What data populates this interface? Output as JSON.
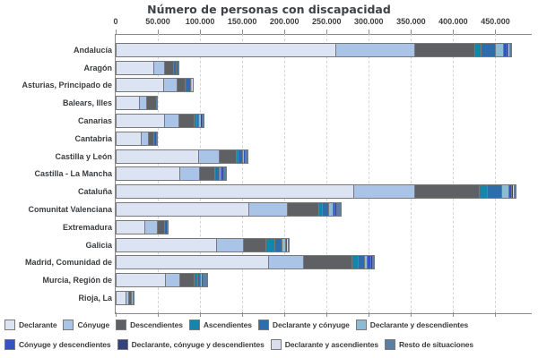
{
  "title": "Número de personas con discapacidad",
  "chart_data": {
    "type": "bar",
    "orientation": "horizontal-stacked",
    "title": "Número de personas con discapacidad",
    "xlabel": "",
    "ylabel": "",
    "xlim": [
      0,
      492000
    ],
    "x_ticks": [
      0,
      50000,
      100000,
      150000,
      200000,
      250000,
      300000,
      350000,
      400000,
      450000
    ],
    "x_tick_labels": [
      "0",
      "50.000",
      "100.000",
      "150.000",
      "200.000",
      "250.000",
      "300.000",
      "350.000",
      "400.000",
      "450.000"
    ],
    "grid": "vertical-dashed",
    "legend_position": "bottom",
    "categories": [
      "Andalucía",
      "Aragón",
      "Asturias, Principado de",
      "Balears, Illes",
      "Canarias",
      "Cantabria",
      "Castilla y León",
      "Castilla - La Mancha",
      "Cataluña",
      "Comunitat Valenciana",
      "Extremadura",
      "Galicia",
      "Madrid, Comunidad de",
      "Murcia, Región de",
      "Rioja, La"
    ],
    "series": [
      {
        "name": "Declarante",
        "color": "#dce3f2",
        "values": [
          259000,
          44000,
          55500,
          26200,
          55900,
          28300,
          97000,
          74300,
          280300,
          156400,
          33300,
          117500,
          179700,
          57300,
          10600
        ]
      },
      {
        "name": "Cónyuge",
        "color": "#a9c4e7",
        "values": [
          93000,
          11000,
          14900,
          7400,
          15900,
          7800,
          23400,
          22000,
          71500,
          44200,
          13400,
          31800,
          40300,
          16300,
          1800
        ]
      },
      {
        "name": "Descendientes",
        "color": "#5e6064",
        "values": [
          70000,
          9500,
          8200,
          10600,
          17000,
          5000,
          18400,
          17700,
          75400,
          36400,
          7100,
          24800,
          56600,
          15600,
          2400
        ]
      },
      {
        "name": "Ascendientes",
        "color": "#1287ab",
        "values": [
          6400,
          800,
          1000,
          200,
          2100,
          400,
          1800,
          1200,
          8800,
          3500,
          500,
          9600,
          6400,
          2900,
          200
        ]
      },
      {
        "name": "Declarante y cónyuge",
        "color": "#2d6dac",
        "values": [
          16000,
          1500,
          4200,
          300,
          2100,
          900,
          3500,
          2900,
          15900,
          6400,
          1000,
          7100,
          5700,
          2900,
          400
        ]
      },
      {
        "name": "Declarante y descendientes",
        "color": "#8cbcd4",
        "values": [
          8500,
          600,
          800,
          150,
          1100,
          400,
          1200,
          900,
          7100,
          3500,
          400,
          3500,
          2900,
          1000,
          200
        ]
      },
      {
        "name": "Cónyuge y descendientes",
        "color": "#3354c6",
        "values": [
          3200,
          400,
          500,
          100,
          700,
          300,
          900,
          1400,
          2100,
          1500,
          300,
          1000,
          2900,
          600,
          100
        ]
      },
      {
        "name": "Declarante, cónyuge y descendientes",
        "color": "#33417e",
        "values": [
          1000,
          200,
          300,
          100,
          400,
          200,
          400,
          400,
          800,
          600,
          200,
          500,
          700,
          300,
          100
        ]
      },
      {
        "name": "Declarante y ascendientes",
        "color": "#d9dded",
        "values": [
          1000,
          200,
          200,
          100,
          300,
          200,
          400,
          300,
          1200,
          700,
          200,
          600,
          700,
          300,
          100
        ]
      },
      {
        "name": "Resto de situaciones",
        "color": "#5a7fa2",
        "values": [
          2000,
          500,
          800,
          150,
          2500,
          800,
          2400,
          2800,
          2900,
          5200,
          900,
          1800,
          2100,
          4400,
          800
        ]
      }
    ]
  }
}
